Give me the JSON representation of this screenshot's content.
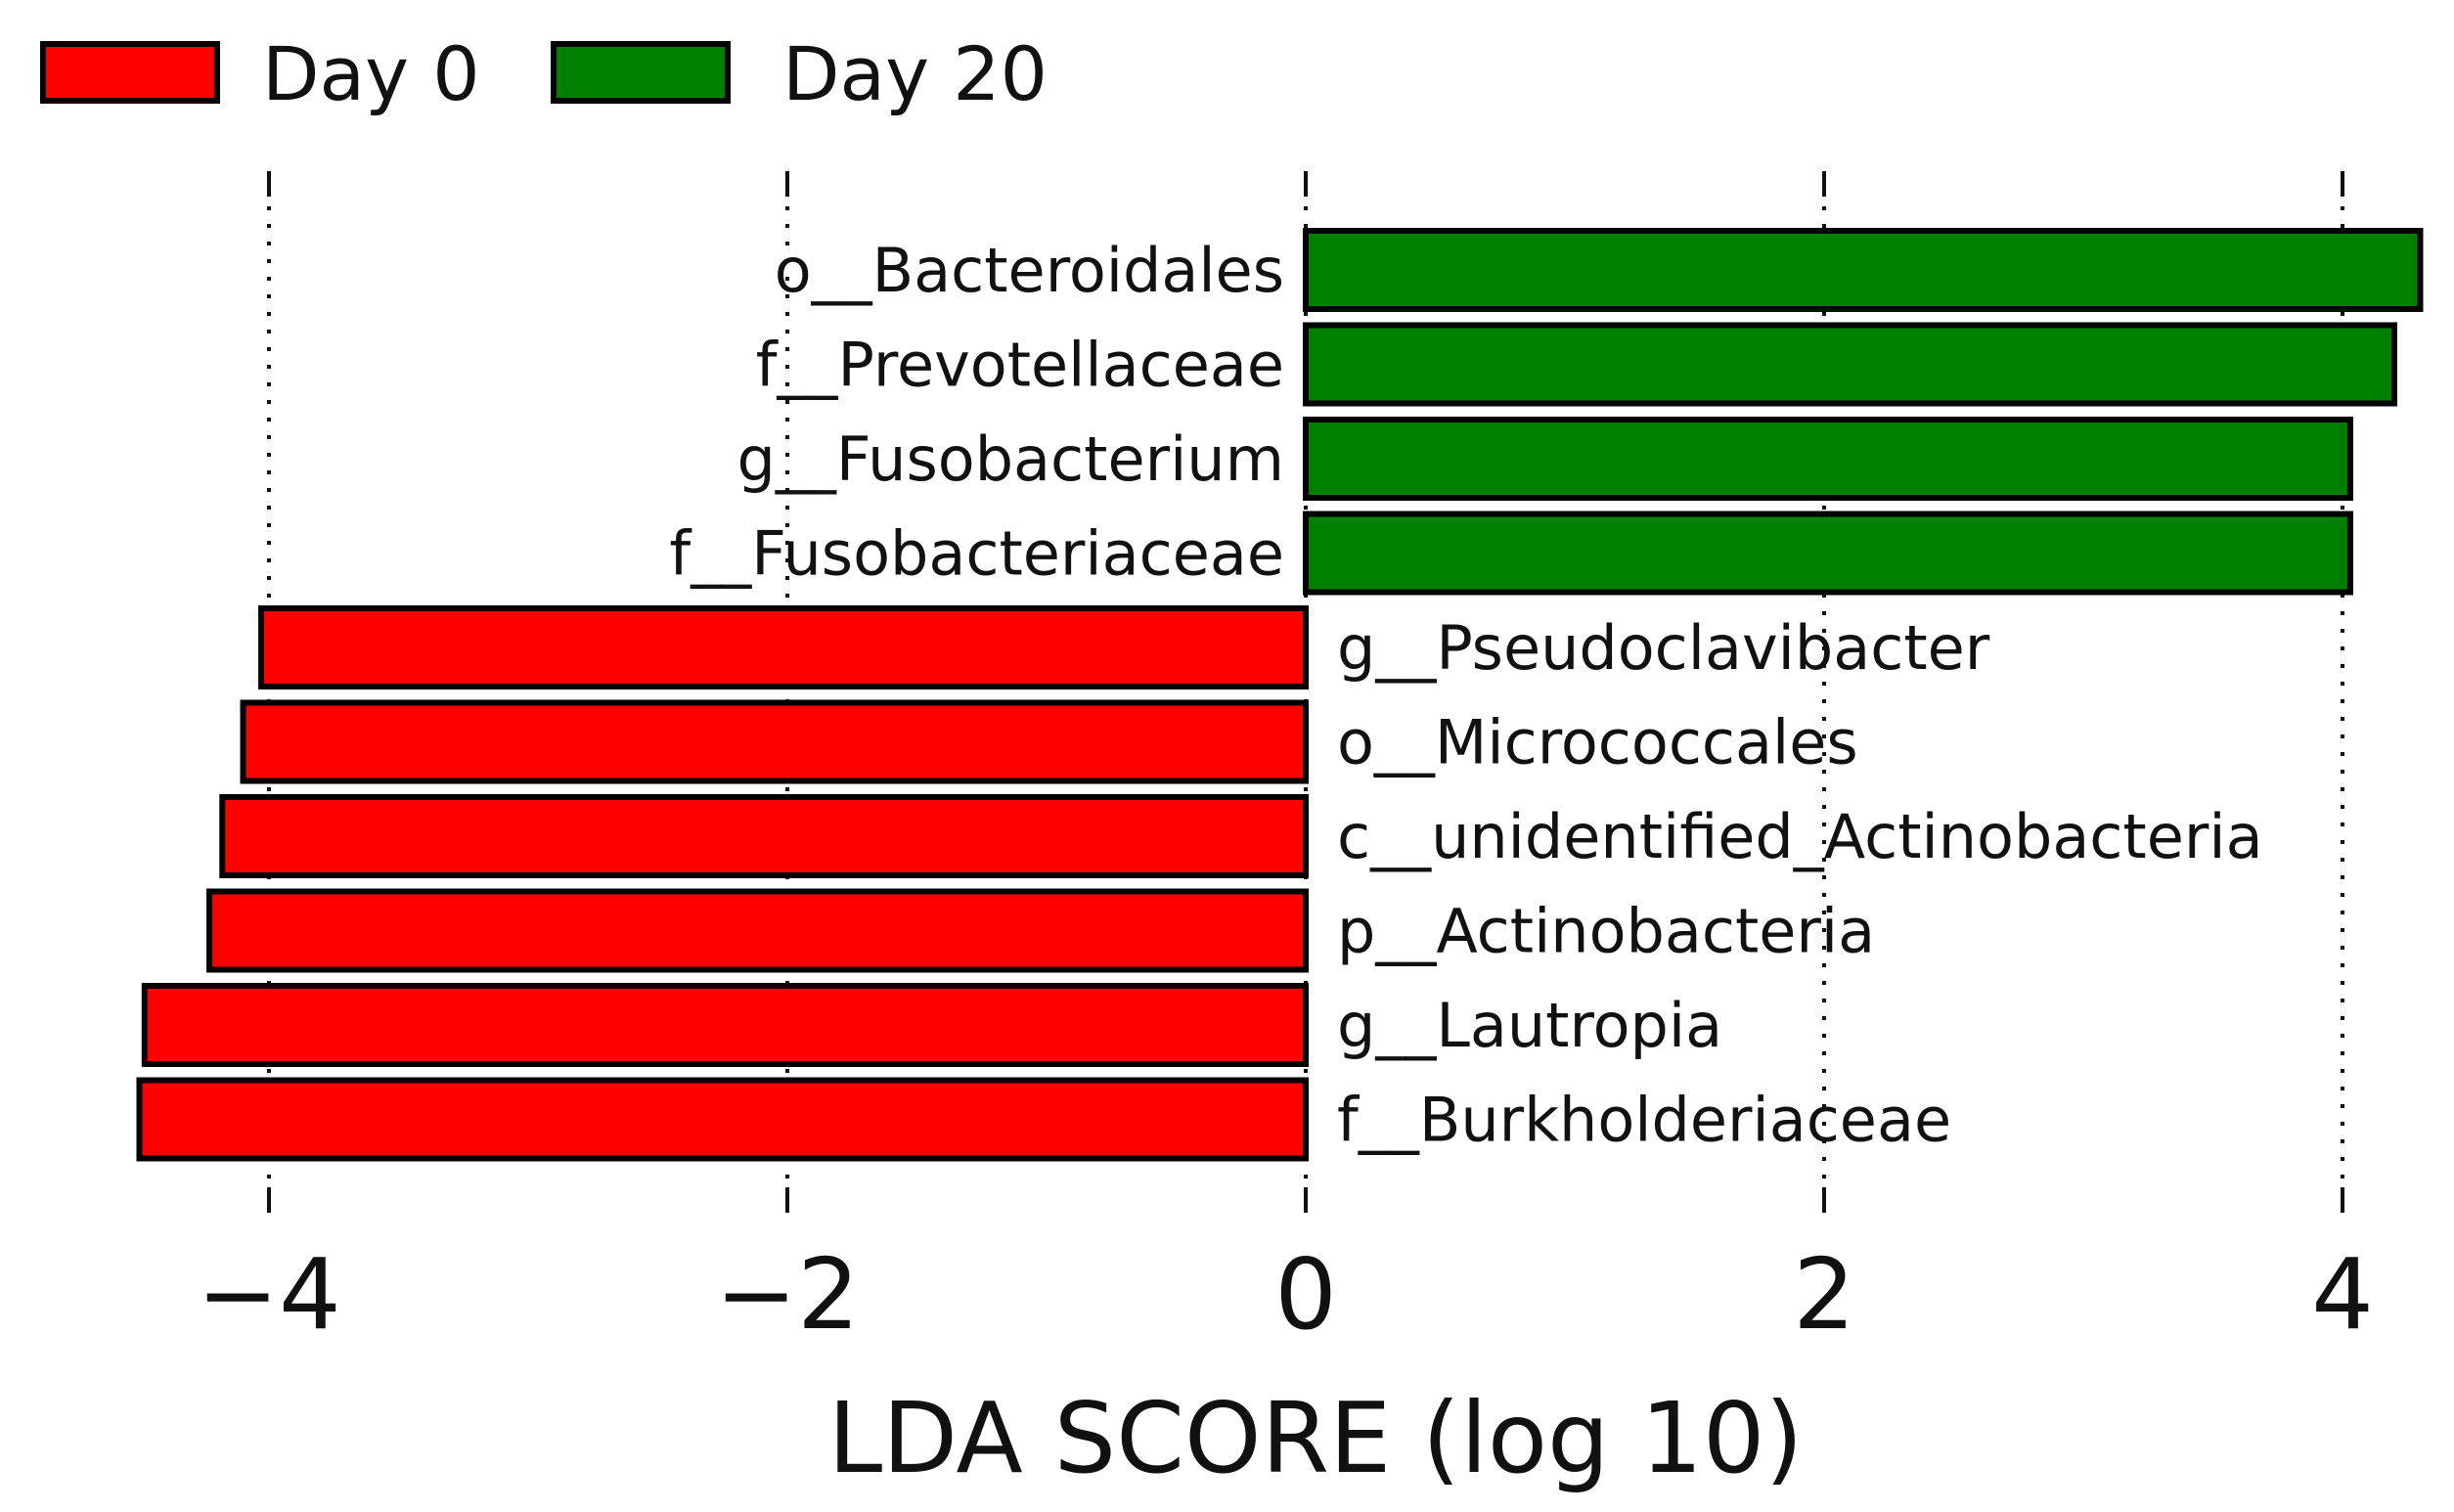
{
  "chart_data": {
    "type": "bar",
    "orientation": "horizontal",
    "title": "",
    "xlabel": "LDA SCORE (log 10)",
    "ylabel": "",
    "xlim": [
      -4.5,
      4.3
    ],
    "xticks": [
      -4,
      -2,
      0,
      2,
      4
    ],
    "xtick_labels": [
      "−4",
      "−2",
      "0",
      "2",
      "4"
    ],
    "grid": "vertical dotted",
    "legend": {
      "position": "top-left",
      "entries": [
        {
          "name": "Day 0",
          "color": "#ff0000"
        },
        {
          "name": "Day 20",
          "color": "#007f00"
        }
      ]
    },
    "categories": [
      "o__Bacteroidales",
      "f__Prevotellaceae",
      "g__Fusobacterium",
      "f__Fusobacteriaceae",
      "g__Pseudoclavibacter",
      "o__Micrococcales",
      "c__unidentified_Actinobacteria",
      "p__Actinobacteria",
      "g__Lautropia",
      "f__Burkholderiaceae"
    ],
    "values": [
      4.3,
      4.2,
      4.03,
      4.03,
      -4.03,
      -4.1,
      -4.18,
      -4.23,
      -4.48,
      -4.5
    ],
    "groups": [
      "Day 20",
      "Day 20",
      "Day 20",
      "Day 20",
      "Day 0",
      "Day 0",
      "Day 0",
      "Day 0",
      "Day 0",
      "Day 0"
    ]
  }
}
